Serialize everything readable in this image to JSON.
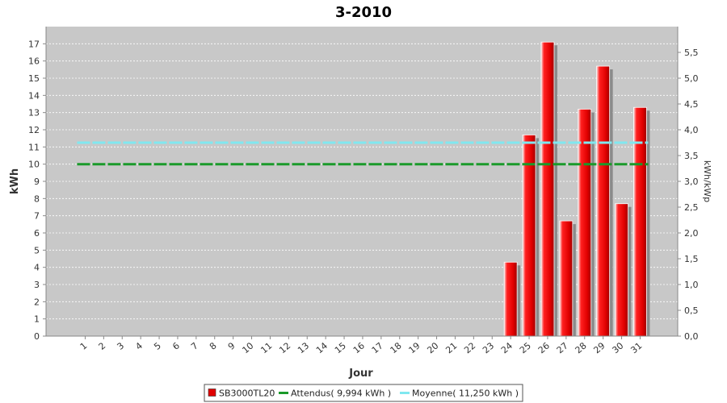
{
  "chart_data": {
    "type": "bar",
    "title": "3-2010",
    "xlabel": "Jour",
    "ylabel": "kWh",
    "y2label": "kWh/kWp",
    "ylim": [
      0,
      18
    ],
    "y2lim": [
      0,
      6
    ],
    "yticks": [
      "0",
      "1",
      "2",
      "3",
      "4",
      "5",
      "6",
      "7",
      "8",
      "9",
      "10",
      "11",
      "12",
      "13",
      "14",
      "15",
      "16",
      "17"
    ],
    "y2ticks": [
      "0,0",
      "0,5",
      "1,0",
      "1,5",
      "2,0",
      "2,5",
      "3,0",
      "3,5",
      "4,0",
      "4,5",
      "5,0",
      "5,5"
    ],
    "categories": [
      "1",
      "2",
      "3",
      "4",
      "5",
      "6",
      "7",
      "8",
      "9",
      "10",
      "11",
      "12",
      "13",
      "14",
      "15",
      "16",
      "17",
      "18",
      "19",
      "20",
      "21",
      "22",
      "23",
      "24",
      "25",
      "26",
      "27",
      "28",
      "29",
      "30",
      "31"
    ],
    "series": [
      {
        "name": "SB3000TL20",
        "color": "#e00000",
        "values": [
          0,
          0,
          0,
          0,
          0,
          0,
          0,
          0,
          0,
          0,
          0,
          0,
          0,
          0,
          0,
          0,
          0,
          0,
          0,
          0,
          0,
          0,
          0,
          4.3,
          11.7,
          17.1,
          6.7,
          13.2,
          15.7,
          7.7,
          13.3
        ]
      }
    ],
    "lines": [
      {
        "name": "Attendus( 9,994 kWh )",
        "color": "#1a9a2a",
        "value": 9.994
      },
      {
        "name": "Moyenne( 11,250 kWh )",
        "color": "#80e8f0",
        "value": 11.25
      }
    ],
    "grid": true,
    "legend": "bottom"
  }
}
